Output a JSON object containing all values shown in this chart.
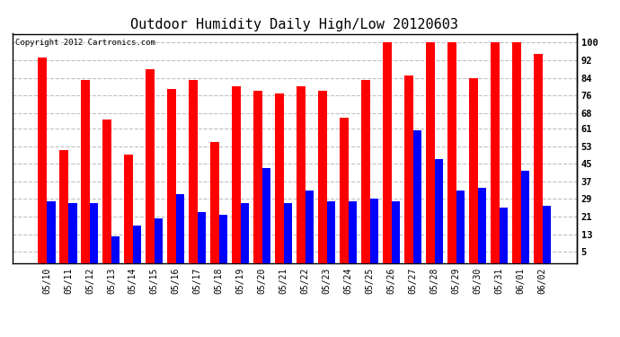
{
  "title": "Outdoor Humidity Daily High/Low 20120603",
  "copyright": "Copyright 2012 Cartronics.com",
  "dates": [
    "05/10",
    "05/11",
    "05/12",
    "05/13",
    "05/14",
    "05/15",
    "05/16",
    "05/17",
    "05/18",
    "05/19",
    "05/20",
    "05/21",
    "05/22",
    "05/23",
    "05/24",
    "05/25",
    "05/26",
    "05/27",
    "05/28",
    "05/29",
    "05/30",
    "05/31",
    "06/01",
    "06/02"
  ],
  "highs": [
    93,
    51,
    83,
    65,
    49,
    88,
    79,
    83,
    55,
    80,
    78,
    77,
    80,
    78,
    66,
    83,
    100,
    85,
    100,
    100,
    84,
    100,
    100,
    95
  ],
  "lows": [
    28,
    27,
    27,
    12,
    17,
    20,
    31,
    23,
    22,
    27,
    43,
    27,
    33,
    28,
    28,
    29,
    28,
    60,
    47,
    33,
    34,
    25,
    42,
    26
  ],
  "bar_color_high": "#ff0000",
  "bar_color_low": "#0000ff",
  "background_color": "#ffffff",
  "grid_color": "#c0c0c0",
  "yticks": [
    5,
    13,
    21,
    29,
    37,
    45,
    53,
    61,
    68,
    76,
    84,
    92,
    100
  ],
  "ylim": [
    0,
    104
  ],
  "title_fontsize": 11,
  "copyright_fontsize": 6.5,
  "tick_fontsize": 7.5,
  "xtick_fontsize": 7
}
